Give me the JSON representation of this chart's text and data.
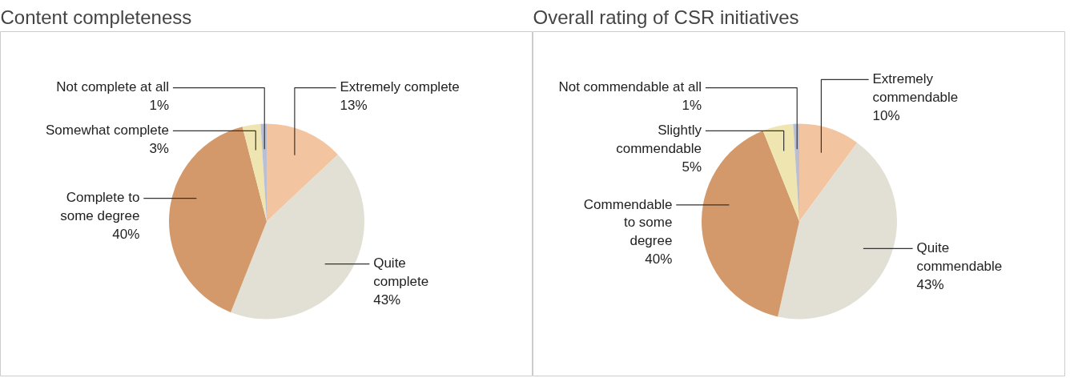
{
  "chart_data": [
    {
      "type": "pie",
      "title": "Content completeness",
      "data_labels": true,
      "categories": [
        "Extremely complete",
        "Quite\ncomplete",
        "Complete to\nsome degree",
        "Somewhat complete",
        "Not complete at all"
      ],
      "values": [
        13,
        43,
        40,
        3,
        1
      ],
      "value_labels": [
        "13%",
        "43%",
        "40%",
        "3%",
        "1%"
      ],
      "colors": [
        "#f3c4a0",
        "#e2e0d4",
        "#d4996b",
        "#eee5b0",
        "#b9bfd4"
      ]
    },
    {
      "type": "pie",
      "title": "Overall rating of CSR initiatives",
      "data_labels": true,
      "categories": [
        "Extremely\ncommendable",
        "Quite\ncommendable",
        "Commendable\nto some\ndegree",
        "Slightly\ncommendable",
        "Not commendable at all"
      ],
      "values": [
        10,
        43,
        40,
        5,
        1
      ],
      "value_labels": [
        "10%",
        "43%",
        "40%",
        "5%",
        "1%"
      ],
      "colors": [
        "#f3c4a0",
        "#e2e0d4",
        "#d4996b",
        "#eee5b0",
        "#b9bfd4"
      ]
    }
  ]
}
